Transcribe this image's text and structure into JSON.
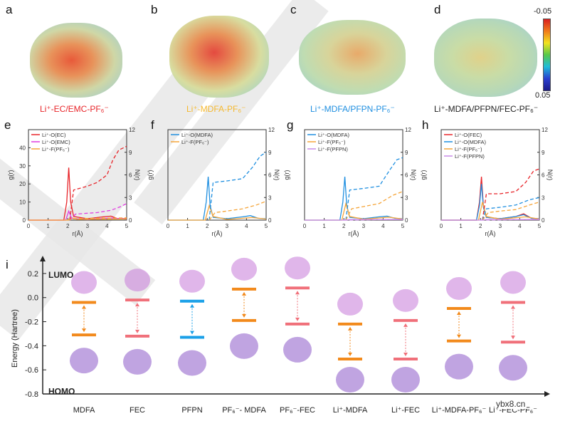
{
  "panel_labels": {
    "a": "a",
    "b": "b",
    "c": "c",
    "d": "d",
    "e": "e",
    "f": "f",
    "g": "g",
    "h": "h",
    "i": "i"
  },
  "colors": {
    "red": "#e8252a",
    "magenta": "#e03ce0",
    "orange": "#f5a53a",
    "blue": "#1f8fe0",
    "violet": "#c88ae8",
    "lumo": "#f28a1c",
    "salmon": "#f0707a",
    "cyan": "#1aa0e8"
  },
  "top_row": {
    "colorbar": {
      "max_label": "-0.05",
      "min_label": "0.05"
    },
    "captions": [
      {
        "text": "Li⁺-EC/EMC-PF₆⁻",
        "color": "#e8252a"
      },
      {
        "text": "Li⁺-MDFA-PF₆⁻",
        "color": "#f5b82e"
      },
      {
        "text": "Li⁺-MDFA/PFPN-PF₆⁻",
        "color": "#1f8fe0"
      },
      {
        "text": "Li⁺-MDFA/PFPN/FEC-PF₆⁻",
        "color": "#222222"
      }
    ]
  },
  "chart_data": [
    {
      "type": "line",
      "panel": "e",
      "xlabel": "r(Å)",
      "ylabel": "g(r)",
      "y2label": "N(r)",
      "xlim": [
        0,
        5
      ],
      "ylim": [
        0,
        50
      ],
      "y2lim": [
        0,
        12
      ],
      "xticks": [
        "0",
        "1",
        "2",
        "3",
        "4",
        "5"
      ],
      "yticks": [
        "0",
        "10",
        "20",
        "30",
        "40"
      ],
      "y2ticks": [
        "0",
        "3",
        "6",
        "9",
        "12"
      ],
      "legend": [
        "Li⁺-O(EC)",
        "Li⁺-O(EMC)",
        "Li⁺-F(PF₆⁻)"
      ],
      "series": [
        {
          "name": "Li⁺-O(EC) g(r)",
          "color": "#e8252a",
          "style": "solid",
          "points": [
            [
              0,
              0
            ],
            [
              1.8,
              0
            ],
            [
              1.95,
              10
            ],
            [
              2.05,
              29
            ],
            [
              2.15,
              10
            ],
            [
              2.3,
              2
            ],
            [
              3,
              0.8
            ],
            [
              3.8,
              1.8
            ],
            [
              4.2,
              2.2
            ],
            [
              4.5,
              1
            ],
            [
              5,
              0.8
            ]
          ]
        },
        {
          "name": "Li⁺-O(EMC) g(r)",
          "color": "#e03ce0",
          "style": "solid",
          "points": [
            [
              0,
              0
            ],
            [
              1.9,
              0
            ],
            [
              2.05,
              5
            ],
            [
              2.2,
              1
            ],
            [
              3,
              0.3
            ],
            [
              4.2,
              1.2
            ],
            [
              5,
              0.5
            ]
          ]
        },
        {
          "name": "Li⁺-F(PF₆⁻) g(r)",
          "color": "#f5a53a",
          "style": "solid",
          "points": [
            [
              0,
              0
            ],
            [
              2,
              0
            ],
            [
              2.2,
              1.2
            ],
            [
              2.5,
              0.4
            ],
            [
              5,
              0.6
            ]
          ]
        },
        {
          "name": "Li⁺-O(EC) N(r)",
          "color": "#e8252a",
          "style": "dashed",
          "points": [
            [
              2.1,
              0
            ],
            [
              2.3,
              4
            ],
            [
              3,
              4.5
            ],
            [
              3.5,
              5
            ],
            [
              4,
              6
            ],
            [
              4.3,
              8
            ],
            [
              4.6,
              9.3
            ],
            [
              5,
              9.8
            ]
          ]
        },
        {
          "name": "Li⁺-O(EMC) N(r)",
          "color": "#e03ce0",
          "style": "dashed",
          "points": [
            [
              2.1,
              0
            ],
            [
              2.4,
              0.8
            ],
            [
              3.5,
              1
            ],
            [
              4.2,
              1.3
            ],
            [
              4.7,
              1.8
            ],
            [
              5,
              2.2
            ]
          ]
        },
        {
          "name": "Li⁺-F(PF₆⁻) N(r)",
          "color": "#f5a53a",
          "style": "dashed",
          "points": [
            [
              2,
              0
            ],
            [
              2.4,
              0.2
            ],
            [
              5,
              0.3
            ]
          ]
        }
      ]
    },
    {
      "type": "line",
      "panel": "f",
      "xlabel": "r(Å)",
      "ylabel": "g(r)",
      "y2label": "N(r)",
      "xlim": [
        0,
        5
      ],
      "ylim": [
        0,
        50
      ],
      "y2lim": [
        0,
        12
      ],
      "xticks": [
        "0",
        "1",
        "2",
        "3",
        "4",
        "5"
      ],
      "yticks": [],
      "y2ticks": [
        "0",
        "3",
        "6",
        "9",
        "12"
      ],
      "legend": [
        "Li⁺-O(MDFA)",
        "Li⁺-F(PF₆⁻)"
      ],
      "series": [
        {
          "name": "Li⁺-O(MDFA) g(r)",
          "color": "#1f8fe0",
          "style": "solid",
          "points": [
            [
              0,
              0
            ],
            [
              1.8,
              0
            ],
            [
              1.95,
              10
            ],
            [
              2.05,
              24
            ],
            [
              2.15,
              8
            ],
            [
              2.3,
              1.5
            ],
            [
              3,
              0.8
            ],
            [
              3.8,
              1.8
            ],
            [
              4.2,
              2.5
            ],
            [
              4.6,
              1
            ],
            [
              5,
              0.8
            ]
          ]
        },
        {
          "name": "Li⁺-F(PF₆⁻) g(r)",
          "color": "#f5a53a",
          "style": "solid",
          "points": [
            [
              0,
              0
            ],
            [
              1.9,
              0
            ],
            [
              2.1,
              8
            ],
            [
              2.3,
              2
            ],
            [
              3,
              0.4
            ],
            [
              4.3,
              1.4
            ],
            [
              5,
              0.6
            ]
          ]
        },
        {
          "name": "Li⁺-O(MDFA) N(r)",
          "color": "#1f8fe0",
          "style": "dashed",
          "points": [
            [
              2.1,
              0
            ],
            [
              2.3,
              5
            ],
            [
              3,
              5.2
            ],
            [
              3.8,
              5.5
            ],
            [
              4.3,
              7
            ],
            [
              4.7,
              8.5
            ],
            [
              5,
              9
            ]
          ]
        },
        {
          "name": "Li⁺-F(PF₆⁻) N(r)",
          "color": "#f5a53a",
          "style": "dashed",
          "points": [
            [
              2.1,
              0
            ],
            [
              2.4,
              1
            ],
            [
              3,
              1.2
            ],
            [
              3.8,
              1.5
            ],
            [
              4.5,
              2
            ],
            [
              5,
              2.5
            ]
          ]
        }
      ]
    },
    {
      "type": "line",
      "panel": "g",
      "xlabel": "r(Å)",
      "ylabel": "g(r)",
      "y2label": "N(r)",
      "xlim": [
        0,
        5
      ],
      "ylim": [
        0,
        50
      ],
      "y2lim": [
        0,
        12
      ],
      "xticks": [
        "0",
        "1",
        "2",
        "3",
        "4",
        "5"
      ],
      "yticks": [],
      "y2ticks": [
        "0",
        "3",
        "6",
        "9",
        "12"
      ],
      "legend": [
        "Li⁺-O(MDFA)",
        "Li⁺-F(PF₆⁻)",
        "Li⁺-F(PFPN)"
      ],
      "series": [
        {
          "name": "Li⁺-O(MDFA) g(r)",
          "color": "#1f8fe0",
          "style": "solid",
          "points": [
            [
              0,
              0
            ],
            [
              1.8,
              0
            ],
            [
              1.95,
              10
            ],
            [
              2.05,
              24
            ],
            [
              2.15,
              8
            ],
            [
              2.3,
              1.5
            ],
            [
              3,
              0.8
            ],
            [
              3.8,
              1.8
            ],
            [
              4.2,
              2.2
            ],
            [
              4.6,
              1
            ],
            [
              5,
              0.8
            ]
          ]
        },
        {
          "name": "Li⁺-F(PF₆⁻) g(r)",
          "color": "#f5a53a",
          "style": "solid",
          "points": [
            [
              0,
              0
            ],
            [
              1.9,
              0
            ],
            [
              2.1,
              9
            ],
            [
              2.3,
              2
            ],
            [
              3,
              0.5
            ],
            [
              4.3,
              1.6
            ],
            [
              5,
              0.6
            ]
          ]
        },
        {
          "name": "Li⁺-F(PFPN) g(r)",
          "color": "#c88ae8",
          "style": "solid",
          "points": [
            [
              0,
              0
            ],
            [
              2,
              0
            ],
            [
              2.3,
              0.3
            ],
            [
              5,
              0.3
            ]
          ]
        },
        {
          "name": "Li⁺-O(MDFA) N(r)",
          "color": "#1f8fe0",
          "style": "dashed",
          "points": [
            [
              2.1,
              0
            ],
            [
              2.3,
              4
            ],
            [
              3,
              4.2
            ],
            [
              3.8,
              4.5
            ],
            [
              4.3,
              6.5
            ],
            [
              4.7,
              8
            ],
            [
              5,
              8.3
            ]
          ]
        },
        {
          "name": "Li⁺-F(PF₆⁻) N(r)",
          "color": "#f5a53a",
          "style": "dashed",
          "points": [
            [
              2.1,
              0
            ],
            [
              2.4,
              1.5
            ],
            [
              3,
              1.8
            ],
            [
              3.8,
              2.2
            ],
            [
              4.5,
              3.3
            ],
            [
              5,
              3.8
            ]
          ]
        },
        {
          "name": "Li⁺-F(PFPN) N(r)",
          "color": "#c88ae8",
          "style": "dashed",
          "points": [
            [
              2,
              0
            ],
            [
              5,
              0.1
            ]
          ]
        }
      ]
    },
    {
      "type": "line",
      "panel": "h",
      "xlabel": "r(Å)",
      "ylabel": "g(r)",
      "y2label": "N(r)",
      "xlim": [
        0,
        5
      ],
      "ylim": [
        0,
        50
      ],
      "y2lim": [
        0,
        12
      ],
      "xticks": [
        "0",
        "1",
        "2",
        "3",
        "4",
        "5"
      ],
      "yticks": [],
      "y2ticks": [
        "0",
        "3",
        "6",
        "9",
        "12"
      ],
      "legend": [
        "Li⁺-O(FEC)",
        "Li⁺-O(MDFA)",
        "Li⁺-F(PF₆⁻)",
        "Li⁺-F(PFPN)"
      ],
      "series": [
        {
          "name": "Li⁺-O(FEC) g(r)",
          "color": "#e8252a",
          "style": "solid",
          "points": [
            [
              0,
              0
            ],
            [
              1.8,
              0
            ],
            [
              1.95,
              10
            ],
            [
              2.05,
              24
            ],
            [
              2.15,
              8
            ],
            [
              2.3,
              1.5
            ],
            [
              3,
              0.8
            ],
            [
              3.8,
              2
            ],
            [
              4.2,
              3.5
            ],
            [
              4.6,
              1
            ],
            [
              5,
              0.8
            ]
          ]
        },
        {
          "name": "Li⁺-O(MDFA) g(r)",
          "color": "#1f8fe0",
          "style": "solid",
          "points": [
            [
              0,
              0
            ],
            [
              1.8,
              0
            ],
            [
              1.95,
              8
            ],
            [
              2.05,
              20
            ],
            [
              2.15,
              7
            ],
            [
              2.3,
              1.5
            ],
            [
              3,
              0.8
            ],
            [
              3.8,
              2
            ],
            [
              4.2,
              3
            ],
            [
              4.6,
              1
            ],
            [
              5,
              0.8
            ]
          ]
        },
        {
          "name": "Li⁺-F(PF₆⁻) g(r)",
          "color": "#f5a53a",
          "style": "solid",
          "points": [
            [
              0,
              0
            ],
            [
              1.9,
              0
            ],
            [
              2.1,
              10
            ],
            [
              2.3,
              2
            ],
            [
              3,
              0.5
            ],
            [
              4.3,
              1.8
            ],
            [
              5,
              0.6
            ]
          ]
        },
        {
          "name": "Li⁺-F(PFPN) g(r)",
          "color": "#c88ae8",
          "style": "solid",
          "points": [
            [
              0,
              0
            ],
            [
              2,
              0
            ],
            [
              2.3,
              0.3
            ],
            [
              5,
              0.3
            ]
          ]
        },
        {
          "name": "Li⁺-O(FEC) N(r)",
          "color": "#e8252a",
          "style": "dashed",
          "points": [
            [
              2.1,
              0
            ],
            [
              2.3,
              3.5
            ],
            [
              3,
              3.5
            ],
            [
              3.8,
              3.8
            ],
            [
              4.3,
              5
            ],
            [
              4.7,
              6.5
            ],
            [
              5,
              6.8
            ]
          ]
        },
        {
          "name": "Li⁺-O(MDFA) N(r)",
          "color": "#1f8fe0",
          "style": "dashed",
          "points": [
            [
              2.1,
              0
            ],
            [
              2.3,
              1.5
            ],
            [
              3,
              1.7
            ],
            [
              3.8,
              2
            ],
            [
              4.5,
              2.7
            ],
            [
              5,
              3
            ]
          ]
        },
        {
          "name": "Li⁺-F(PF₆⁻) N(r)",
          "color": "#f5a53a",
          "style": "dashed",
          "points": [
            [
              2.1,
              0
            ],
            [
              2.4,
              1
            ],
            [
              3,
              1.2
            ],
            [
              3.8,
              1.4
            ],
            [
              4.5,
              2
            ],
            [
              5,
              2.4
            ]
          ]
        },
        {
          "name": "Li⁺-F(PFPN) N(r)",
          "color": "#c88ae8",
          "style": "dashed",
          "points": [
            [
              2,
              0
            ],
            [
              5,
              0.1
            ]
          ]
        }
      ]
    },
    {
      "type": "bar",
      "panel": "i",
      "subtype": "energy-levels",
      "ylabel": "Energy (Hartree)",
      "ylim": [
        -0.8,
        0.3
      ],
      "yticks": [
        "0.2",
        "0.0",
        "-0.2",
        "-0.4",
        "-0.6",
        "-0.8"
      ],
      "top_label": "LUMO",
      "bottom_label": "HOMO",
      "categories": [
        "MDFA",
        "FEC",
        "PFPN",
        "PF₆⁻- MDFA",
        "PF₆⁻-FEC",
        "Li⁺-MDFA",
        "Li⁺-FEC",
        "Li⁺-MDFA-PF₆⁻",
        "Li⁺-FEC-PF₆⁻"
      ],
      "lumo": [
        -0.04,
        -0.02,
        -0.03,
        0.07,
        0.08,
        -0.22,
        -0.19,
        -0.09,
        -0.04
      ],
      "homo": [
        -0.31,
        -0.32,
        -0.33,
        -0.19,
        -0.22,
        -0.51,
        -0.51,
        -0.36,
        -0.37
      ],
      "level_colors": [
        "#f28a1c",
        "#f0707a",
        "#1aa0e8",
        "#f28a1c",
        "#f0707a",
        "#f28a1c",
        "#f0707a",
        "#f28a1c",
        "#f0707a"
      ]
    }
  ],
  "watermark_text": "ybx8.cn"
}
